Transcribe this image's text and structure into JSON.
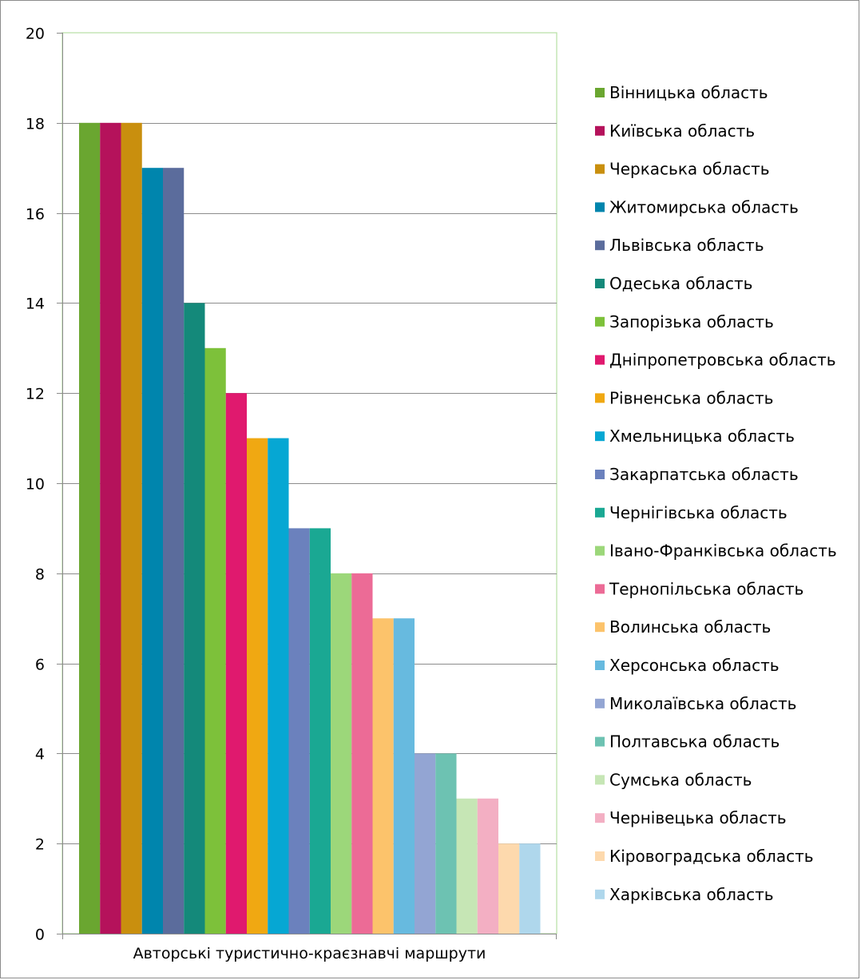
{
  "chart_data": {
    "type": "bar",
    "categories": [
      "Авторські туристично-краєзнавчі маршрути"
    ],
    "xlabel": "",
    "ylabel": "",
    "ylim": [
      0,
      20
    ],
    "y_ticks": [
      0,
      2,
      4,
      6,
      8,
      10,
      12,
      14,
      16,
      18,
      20
    ],
    "grid": true,
    "legend_position": "right",
    "series": [
      {
        "name": "Вінницька область",
        "values": [
          18
        ],
        "color": "#6aa630"
      },
      {
        "name": "Київська область",
        "values": [
          18
        ],
        "color": "#b5125b"
      },
      {
        "name": "Черкаська область",
        "values": [
          18
        ],
        "color": "#c98f0e"
      },
      {
        "name": "Житомирська область",
        "values": [
          17
        ],
        "color": "#0085ad"
      },
      {
        "name": "Львівська область",
        "values": [
          17
        ],
        "color": "#5b6c9c"
      },
      {
        "name": "Одеська область",
        "values": [
          14
        ],
        "color": "#14897a"
      },
      {
        "name": "Запорізька область",
        "values": [
          13
        ],
        "color": "#7dc13a"
      },
      {
        "name": "Дніпропетровська область",
        "values": [
          12
        ],
        "color": "#e0196e"
      },
      {
        "name": "Рівненська область",
        "values": [
          11
        ],
        "color": "#f0a812"
      },
      {
        "name": "Хмельницька область",
        "values": [
          11
        ],
        "color": "#06a7d3"
      },
      {
        "name": "Закарпатська область",
        "values": [
          9
        ],
        "color": "#6b81bd"
      },
      {
        "name": "Чернігівська область",
        "values": [
          9
        ],
        "color": "#1aa893"
      },
      {
        "name": "Івано-Франківська область",
        "values": [
          8
        ],
        "color": "#9cd77a"
      },
      {
        "name": "Тернопільська область",
        "values": [
          8
        ],
        "color": "#ec6b96"
      },
      {
        "name": "Волинська область",
        "values": [
          7
        ],
        "color": "#fcc36b"
      },
      {
        "name": "Херсонська область",
        "values": [
          7
        ],
        "color": "#67badf"
      },
      {
        "name": "Миколаївська область",
        "values": [
          4
        ],
        "color": "#93a5d3"
      },
      {
        "name": "Полтавська область",
        "values": [
          4
        ],
        "color": "#6dc2b2"
      },
      {
        "name": "Сумська область",
        "values": [
          3
        ],
        "color": "#c6e6b5"
      },
      {
        "name": "Чернівецька область",
        "values": [
          3
        ],
        "color": "#f3afc3"
      },
      {
        "name": "Кіровоградська область",
        "values": [
          2
        ],
        "color": "#fdd9ad"
      },
      {
        "name": "Харківська область",
        "values": [
          2
        ],
        "color": "#afd7ec"
      }
    ]
  }
}
